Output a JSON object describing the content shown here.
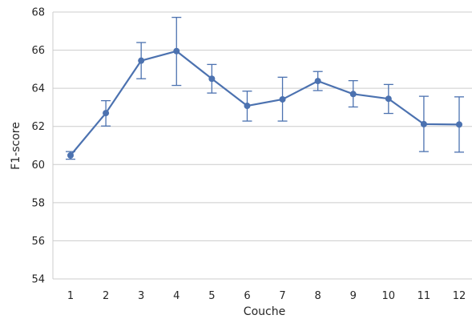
{
  "chart_data": {
    "type": "line",
    "title": "",
    "xlabel": "Couche",
    "ylabel": "F1-score",
    "x": [
      1,
      2,
      3,
      4,
      5,
      6,
      7,
      8,
      9,
      10,
      11,
      12
    ],
    "ylim": [
      54,
      68
    ],
    "yticks": [
      54,
      56,
      58,
      60,
      62,
      64,
      66,
      68
    ],
    "grid": "horizontal",
    "series": [
      {
        "values": [
          60.48,
          62.7,
          65.45,
          65.95,
          64.5,
          63.08,
          63.42,
          64.38,
          63.7,
          63.45,
          62.12,
          62.1
        ],
        "error_low": [
          60.28,
          62.02,
          64.5,
          64.15,
          63.75,
          62.28,
          62.28,
          63.88,
          63.02,
          62.68,
          60.68,
          60.65
        ],
        "error_high": [
          60.68,
          63.35,
          66.4,
          67.72,
          65.25,
          63.85,
          64.58,
          64.88,
          64.4,
          64.2,
          63.58,
          63.55
        ],
        "color": "#4c72b0"
      }
    ]
  }
}
